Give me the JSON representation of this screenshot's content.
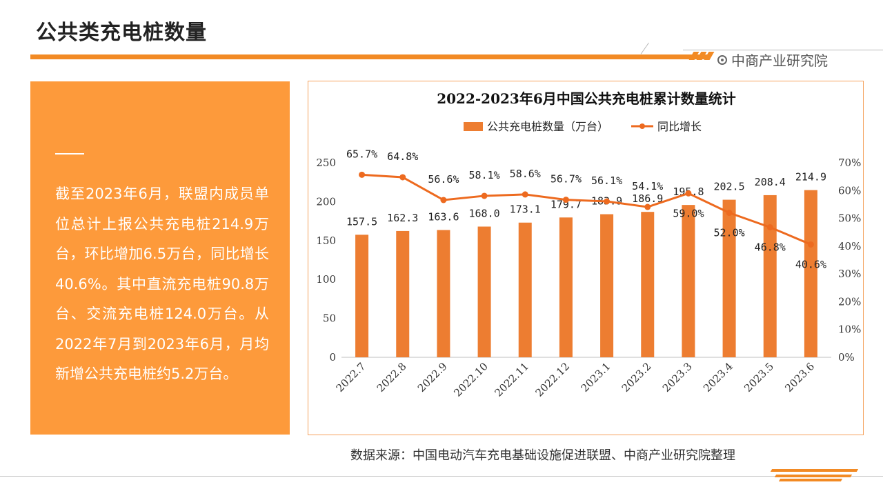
{
  "header": {
    "title": "公共类充电桩数量",
    "brand": "中商产业研究院"
  },
  "left_panel": {
    "text": "截至2023年6月，联盟内成员单位总计上报公共充电桩214.9万台，环比增加6.5万台，同比增长40.6%。其中直流充电桩90.8万台、交流充电桩124.0万台。从2022年7月到2023年6月，月均新增公共充电桩约5.2万台。"
  },
  "source": "数据来源：中国电动汽车充电基础设施促进联盟、中商产业研究院整理",
  "colors": {
    "accent": "#f28a24",
    "panel": "#fd9a3b",
    "bar": "#ed7d31",
    "line": "#ed6a1f",
    "frame": "#f5a05a"
  },
  "chart_data": {
    "type": "bar",
    "title": "2022-2023年6月中国公共充电桩累计数量统计",
    "categories": [
      "2022.7",
      "2022.8",
      "2022.9",
      "2022.10",
      "2022.11",
      "2022.12",
      "2023.1",
      "2023.2",
      "2023.3",
      "2023.4",
      "2023.5",
      "2023.6"
    ],
    "series": [
      {
        "name": "公共充电桩数量（万台）",
        "type": "bar",
        "axis": "left",
        "values": [
          157.5,
          162.3,
          163.6,
          168.0,
          173.1,
          179.7,
          183.9,
          186.9,
          195.8,
          202.5,
          208.4,
          214.9
        ],
        "labels": [
          "157.5",
          "162.3",
          "163.6",
          "168.0",
          "173.1",
          "179.7",
          "183.9",
          "186.9",
          "195.8",
          "202.5",
          "208.4",
          "214.9"
        ]
      },
      {
        "name": "同比增长",
        "type": "line",
        "axis": "right",
        "values": [
          65.7,
          64.8,
          56.6,
          58.1,
          58.6,
          56.7,
          56.1,
          54.1,
          59.0,
          52.0,
          46.8,
          40.6
        ],
        "labels": [
          "65.7%",
          "64.8%",
          "56.6%",
          "58.1%",
          "58.6%",
          "56.7%",
          "56.1%",
          "54.1%",
          "59.0%",
          "52.0%",
          "46.8%",
          "40.6%"
        ]
      }
    ],
    "ylim": [
      0,
      250
    ],
    "yticks": [
      "0",
      "50",
      "100",
      "150",
      "200",
      "250"
    ],
    "y2lim": [
      0,
      70
    ],
    "y2ticks": [
      "0%",
      "10%",
      "20%",
      "30%",
      "40%",
      "50%",
      "60%",
      "70%"
    ],
    "legend": "top-center",
    "grid": false
  }
}
